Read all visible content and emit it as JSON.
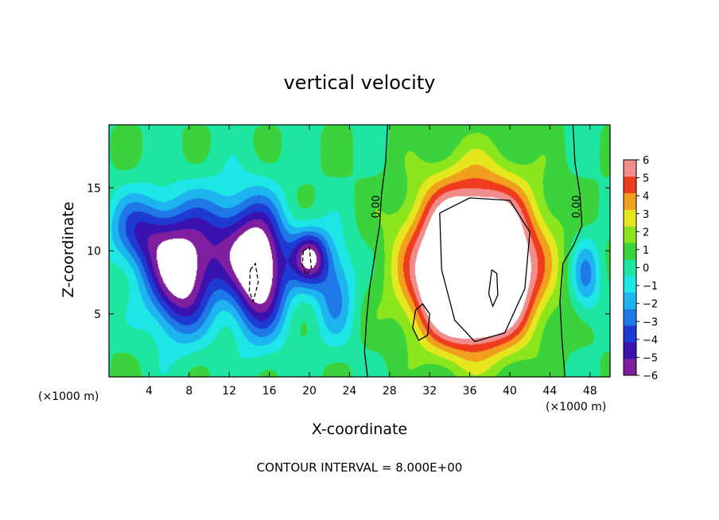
{
  "chart_data": {
    "type": "heatmap",
    "title": "vertical velocity",
    "xlabel": "X-coordinate",
    "ylabel": "Z-coordinate",
    "x_unit": "(×1000 m)",
    "x_unit_right": "(×1000 m)",
    "xlim": [
      0,
      50
    ],
    "ylim": [
      0,
      20
    ],
    "x_ticks": [
      4,
      8,
      12,
      16,
      20,
      24,
      28,
      32,
      36,
      40,
      44,
      48
    ],
    "y_ticks": [
      5,
      10,
      15
    ],
    "colorbar": {
      "min": -6,
      "max": 6,
      "ticks": [
        6,
        5,
        4,
        3,
        2,
        1,
        0,
        -1,
        -2,
        -3,
        -4,
        -5,
        -6
      ],
      "tick_labels": [
        "6",
        "5",
        "4",
        "3",
        "2",
        "1",
        "0",
        "−1",
        "−2",
        "−3",
        "−4",
        "−5",
        "−6"
      ]
    },
    "contour_labels": [
      {
        "text": "0.00",
        "x": 27.0,
        "y": 13.5
      },
      {
        "text": "0.00",
        "x": 47.0,
        "y": 13.5
      }
    ],
    "footer": "CONTOUR INTERVAL = 8.000E+00",
    "updrafts": [
      {
        "x": 36.5,
        "z": 9.5,
        "sx": 5.8,
        "sz": 5.8,
        "amp": 12.0
      },
      {
        "x": 36.0,
        "z": 6.5,
        "sx": 5.0,
        "sz": 4.0,
        "amp": 5.0
      }
    ],
    "downdrafts": [
      {
        "x": 7.0,
        "z": 8.0,
        "sx": 3.2,
        "sz": 4.5,
        "amp": -7.0
      },
      {
        "x": 15.0,
        "z": 8.5,
        "sx": 2.8,
        "sz": 4.8,
        "amp": -8.0
      },
      {
        "x": 20.0,
        "z": 9.5,
        "sx": 1.8,
        "sz": 2.2,
        "amp": -6.0
      },
      {
        "x": 11.0,
        "z": 11.0,
        "sx": 4.0,
        "sz": 4.0,
        "amp": -3.5
      },
      {
        "x": 3.0,
        "z": 11.5,
        "sx": 3.0,
        "sz": 3.0,
        "amp": -4.0
      },
      {
        "x": 22.5,
        "z": 7.0,
        "sx": 2.0,
        "sz": 4.0,
        "amp": -3.0
      },
      {
        "x": 47.5,
        "z": 8.0,
        "sx": 1.5,
        "sz": 3.0,
        "amp": -3.0
      }
    ]
  }
}
